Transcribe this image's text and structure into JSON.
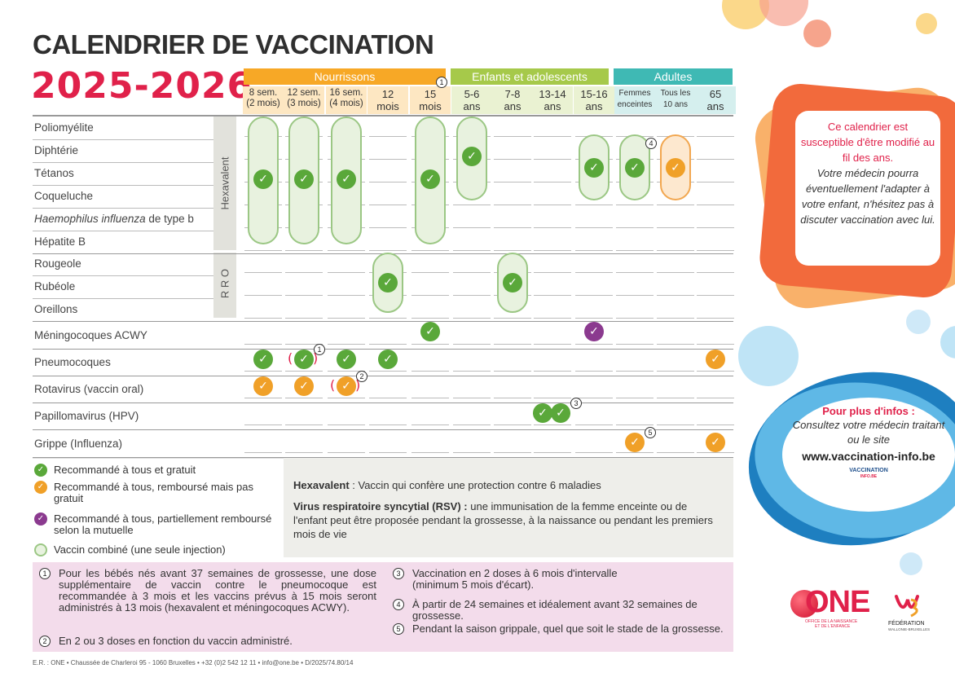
{
  "title": {
    "line1": "CALENDRIER DE VACCINATION",
    "line2": "2025-2026"
  },
  "groups": [
    {
      "label": "Nourrissons",
      "color": "#f7a826"
    },
    {
      "label": "Enfants et adolescents",
      "color": "#a6c94a"
    },
    {
      "label": "Adultes",
      "color": "#3fb9b4"
    }
  ],
  "columns": [
    {
      "l1": "8 sem.",
      "l2": "(2 mois)"
    },
    {
      "l1": "12 sem.",
      "l2": "(3 mois)"
    },
    {
      "l1": "16 sem.",
      "l2": "(4 mois)"
    },
    {
      "l1": "12",
      "l2": "mois"
    },
    {
      "l1": "15",
      "l2": "mois"
    },
    {
      "l1": "5-6",
      "l2": "ans"
    },
    {
      "l1": "7-8",
      "l2": "ans"
    },
    {
      "l1": "13-14",
      "l2": "ans"
    },
    {
      "l1": "15-16",
      "l2": "ans"
    },
    {
      "l1": "Femmes",
      "l2": "enceintes"
    },
    {
      "l1": "Tous les",
      "l2": "10 ans"
    },
    {
      "l1": "65",
      "l2": "ans"
    }
  ],
  "rows": {
    "hexa": [
      "Poliomyélite",
      "Diphtérie",
      "Tétanos",
      "Coqueluche",
      "Haemophilus influenza de type b",
      "Hépatite B"
    ],
    "hib_italic": "Haemophilus influenza",
    "hib_rest": " de type b",
    "rro": [
      "Rougeole",
      "Rubéole",
      "Oreillons"
    ],
    "single": [
      "Méningocoques ACWY",
      "Pneumocoques",
      "Rotavirus (vaccin oral)",
      "Papillomavirus (HPV)",
      "Grippe (Influenza)"
    ]
  },
  "side_labels": {
    "hexa": "Hexavalent",
    "rro": "R R O"
  },
  "notes_nums": [
    "1",
    "2",
    "3",
    "4",
    "5"
  ],
  "check_glyph": "✓",
  "paren_open": "(",
  "paren_close": ")",
  "legend": {
    "green": "Recommandé à tous et gratuit",
    "orange": "Recommandé à tous, remboursé mais pas gratuit",
    "purple": "Recommandé à tous, partiellement remboursé selon la mutuelle",
    "combined": "Vaccin combiné (une seule injection)"
  },
  "info": {
    "hexa_bold": "Hexavalent",
    "hexa_text": " : Vaccin qui confère une protection contre 6 maladies",
    "rsv_bold": "Virus respiratoire syncytial (RSV) :",
    "rsv_text": " une immunisation de la femme enceinte ou de l'enfant peut être proposée pendant la grossesse, à la naissance ou pendant les premiers mois de vie"
  },
  "footnotes": {
    "n1": "Pour les bébés nés avant 37 semaines de grossesse, une dose supplémentaire de vaccin contre le pneumocoque est recommandée à 3 mois et les vaccins prévus à 15 mois seront administrés à 13 mois (hexavalent et méningocoques ACWY).",
    "n2": "En 2 ou 3 doses en fonction du vaccin administré.",
    "n3": "Vaccination en 2 doses à 6 mois d'intervalle (minimum 5 mois d'écart).",
    "n4": "À partir de 24 semaines et idéalement avant 32 semaines de grossesse.",
    "n5": "Pendant la saison grippale, quel que soit le stade de la grossesse."
  },
  "imprint": "E.R. : ONE • Chaussée de Charleroi 95 - 1060 Bruxelles • +32 (0)2 542 12 11 • info@one.be • D/2025/74.80/14",
  "side1": {
    "line_red": "Ce calendrier est susceptible d'être modifié au fil des ans.",
    "line_italic": "Votre médecin pourra éventuellement l'adapter à votre enfant, n'hésitez pas à discuter vaccination avec lui."
  },
  "side2": {
    "title": "Pour plus d'infos :",
    "text": "Consultez votre médecin traitant ou le site",
    "url": "www.vaccination-info.be",
    "logo_text": "VACCINATION",
    "logo_sub": "INFO.BE"
  },
  "logos": {
    "one": "ONE",
    "one_sub1": "OFFICE DE LA NAISSANCE",
    "one_sub2": "ET DE L'ENFANCE",
    "fwb1": "FÉDÉRATION",
    "fwb2": "WALLONIE-BRUXELLES"
  },
  "colors": {
    "red": "#e0214a",
    "green": "#5aa83a",
    "orange": "#f0a028",
    "purple": "#8b3a8f"
  }
}
